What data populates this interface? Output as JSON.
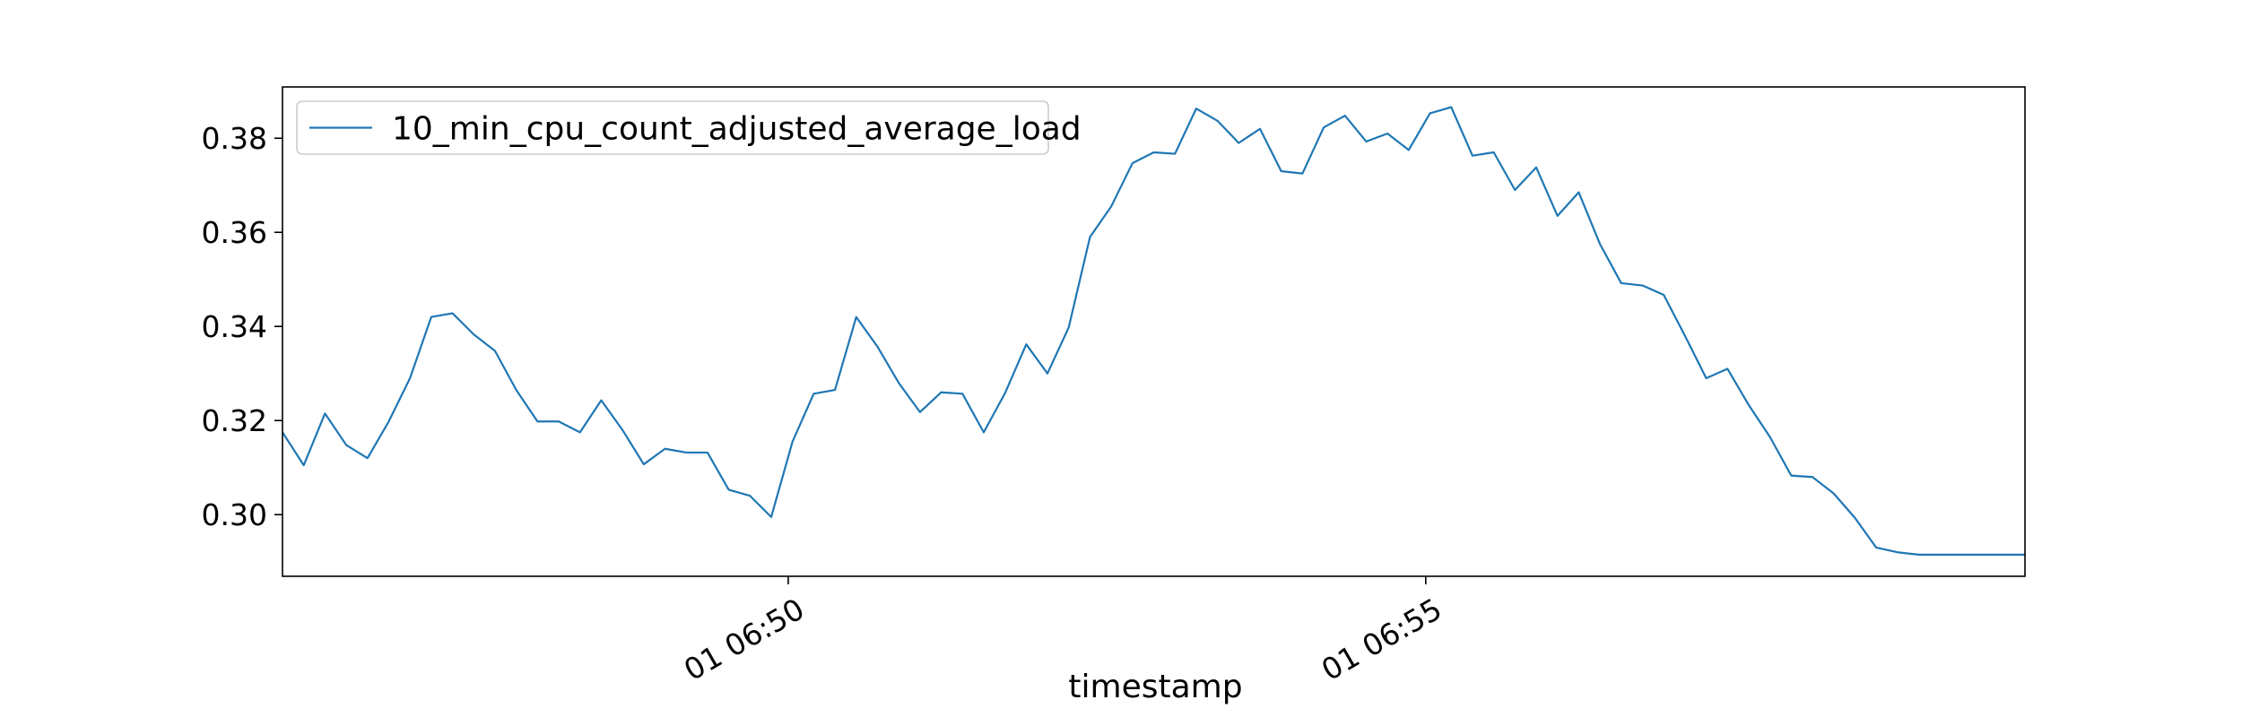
{
  "chart_data": {
    "type": "line",
    "xlabel": "timestamp",
    "ylabel": "",
    "title": "",
    "x_tick_labels": [
      "01 06:50",
      "01 06:55"
    ],
    "x_tick_positions": [
      23.8,
      53.8
    ],
    "y_ticks": [
      0.3,
      0.32,
      0.34,
      0.36,
      0.38
    ],
    "y_tick_labels": [
      "0.30",
      "0.32",
      "0.34",
      "0.36",
      "0.38"
    ],
    "xlim": [
      0,
      82
    ],
    "ylim": [
      0.2869,
      0.3909
    ],
    "grid": false,
    "legend_placement": "top-left",
    "series": [
      {
        "name": "10_min_cpu_count_adjusted_average_load",
        "color": "#1f77b4",
        "x": [
          0,
          1,
          2,
          3,
          4,
          5,
          6,
          7,
          8,
          9,
          10,
          11,
          12,
          13,
          14,
          15,
          16,
          17,
          18,
          19,
          20,
          21,
          22,
          23,
          24,
          25,
          26,
          27,
          28,
          29,
          30,
          31,
          32,
          33,
          34,
          35,
          36,
          37,
          38,
          39,
          40,
          41,
          42,
          43,
          44,
          45,
          46,
          47,
          48,
          49,
          50,
          51,
          52,
          53,
          54,
          55,
          56,
          57,
          58,
          59,
          60,
          61,
          62,
          63,
          64,
          65,
          66,
          67,
          68,
          69,
          70,
          71,
          72,
          73,
          74,
          75,
          76,
          77,
          78,
          79,
          80,
          81,
          82
        ],
        "values": [
          0.3175,
          0.3105,
          0.3215,
          0.3148,
          0.312,
          0.3198,
          0.329,
          0.342,
          0.3428,
          0.3383,
          0.3348,
          0.3265,
          0.3198,
          0.3198,
          0.3175,
          0.3243,
          0.318,
          0.3107,
          0.314,
          0.3132,
          0.3132,
          0.3053,
          0.304,
          0.2995,
          0.3155,
          0.3257,
          0.3265,
          0.342,
          0.3357,
          0.328,
          0.3218,
          0.326,
          0.3257,
          0.3175,
          0.3258,
          0.3362,
          0.33,
          0.3398,
          0.359,
          0.3655,
          0.3747,
          0.377,
          0.3767,
          0.3863,
          0.3837,
          0.379,
          0.382,
          0.373,
          0.3725,
          0.3823,
          0.3848,
          0.3793,
          0.381,
          0.3775,
          0.3853,
          0.3866,
          0.3763,
          0.377,
          0.369,
          0.3738,
          0.3635,
          0.3685,
          0.3575,
          0.3492,
          0.3487,
          0.3467,
          0.338,
          0.329,
          0.331,
          0.3233,
          0.3165,
          0.3083,
          0.308,
          0.3045,
          0.2993,
          0.293,
          0.292,
          0.2915,
          0.2915,
          0.2915,
          0.2915,
          0.2915,
          0.2915
        ]
      }
    ]
  }
}
